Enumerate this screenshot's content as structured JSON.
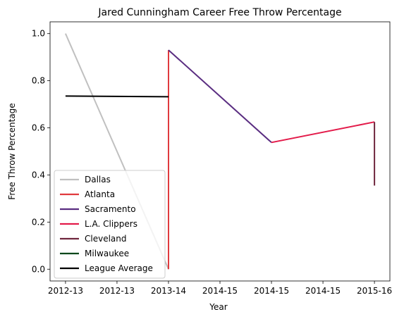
{
  "chart_data": {
    "type": "line",
    "title": "Jared Cunningham Career Free Throw Percentage",
    "xlabel": "Year",
    "ylabel": "Free Throw Percentage",
    "x_tick_labels": [
      "2012-13",
      "2012-13",
      "2013-14",
      "2014-15",
      "2014-15",
      "2014-15",
      "2015-16"
    ],
    "x_tick_values": [
      0,
      0.5,
      1,
      1.5,
      2,
      2.5,
      3
    ],
    "xlim": [
      -0.15,
      3.15
    ],
    "y_ticks": [
      0.0,
      0.2,
      0.4,
      0.6,
      0.8,
      1.0
    ],
    "ylim": [
      -0.05,
      1.05
    ],
    "grid": false,
    "legend_position": "lower-left",
    "series": [
      {
        "name": "Dallas",
        "color": "#c0c0c0",
        "x": [
          0,
          1
        ],
        "y": [
          1.0,
          0.0
        ]
      },
      {
        "name": "Atlanta",
        "color": "#e03a3e",
        "x": [
          1,
          1
        ],
        "y": [
          0.0,
          0.93
        ]
      },
      {
        "name": "Sacramento",
        "color": "#5a2d81",
        "x": [
          1,
          2
        ],
        "y": [
          0.93,
          0.538
        ]
      },
      {
        "name": "L.A. Clippers",
        "color": "#e31b4a",
        "x": [
          2,
          3
        ],
        "y": [
          0.538,
          0.625
        ]
      },
      {
        "name": "Cleveland",
        "color": "#6f263d",
        "x": [
          3,
          3
        ],
        "y": [
          0.625,
          0.355
        ]
      },
      {
        "name": "Milwaukee",
        "color": "#00471b",
        "x": [],
        "y": []
      },
      {
        "name": "League Average",
        "color": "#000000",
        "x": [
          0,
          1
        ],
        "y": [
          0.735,
          0.732
        ]
      }
    ]
  }
}
